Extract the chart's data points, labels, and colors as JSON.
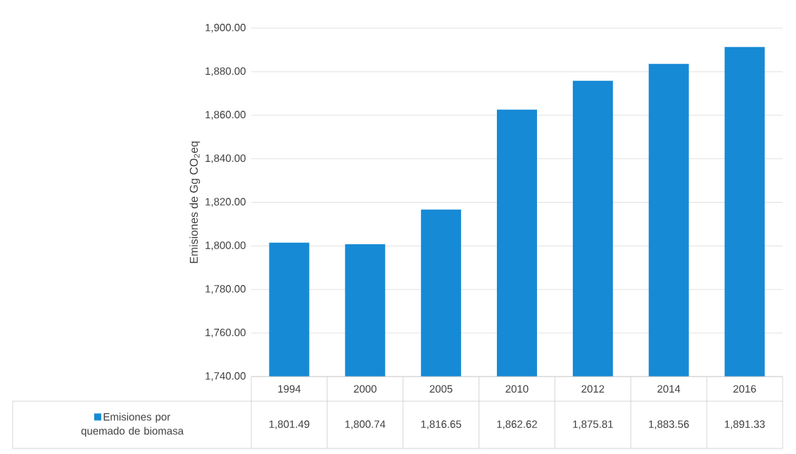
{
  "chart_data": {
    "type": "bar",
    "ylabel": "Emisiones de Gg CO$_{2}$eq",
    "categories": [
      "1994",
      "2000",
      "2005",
      "2010",
      "2012",
      "2014",
      "2016"
    ],
    "series": [
      {
        "name": "Emisiones por quemado de biomasa",
        "color": "#178ad5",
        "values": [
          1801.49,
          1800.74,
          1816.65,
          1862.62,
          1875.81,
          1883.56,
          1891.33
        ],
        "value_labels": [
          "1,801.49",
          "1,800.74",
          "1,816.65",
          "1,862.62",
          "1,875.81",
          "1,883.56",
          "1,891.33"
        ]
      }
    ],
    "ylim": [
      1740,
      1900
    ],
    "yticks": [
      {
        "value": 1740,
        "label": "1,740.00"
      },
      {
        "value": 1760,
        "label": "1,760.00"
      },
      {
        "value": 1780,
        "label": "1,780.00"
      },
      {
        "value": 1800,
        "label": "1,800.00"
      },
      {
        "value": 1820,
        "label": "1,820.00"
      },
      {
        "value": 1840,
        "label": "1,840.00"
      },
      {
        "value": 1860,
        "label": "1,860.00"
      },
      {
        "value": 1880,
        "label": "1,880.00"
      },
      {
        "value": 1900,
        "label": "1,900.00"
      }
    ],
    "grid": "y",
    "legend": "bottom"
  }
}
